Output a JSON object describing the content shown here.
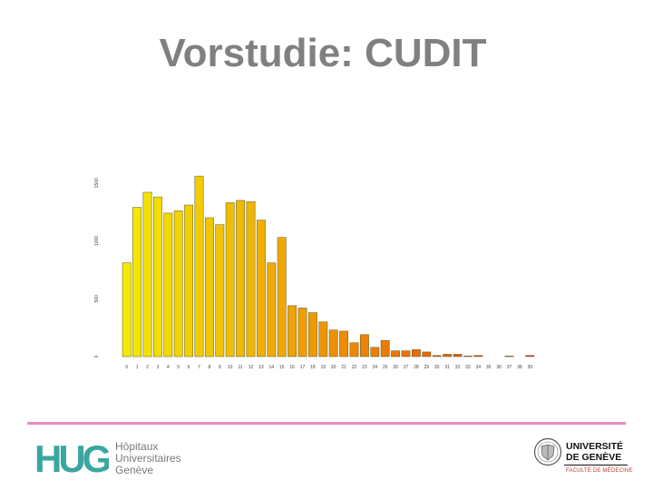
{
  "slide": {
    "title": "Vorstudie: CUDIT"
  },
  "chart_data": {
    "type": "bar",
    "title": "",
    "xlabel": "",
    "ylabel": "",
    "categories": [
      "0",
      "1",
      "2",
      "3",
      "4",
      "5",
      "6",
      "7",
      "8",
      "9",
      "10",
      "11",
      "12",
      "13",
      "14",
      "15",
      "16",
      "17",
      "18",
      "19",
      "20",
      "21",
      "22",
      "23",
      "24",
      "25",
      "26",
      "27",
      "28",
      "29",
      "30",
      "31",
      "32",
      "33",
      "34",
      "35",
      "36",
      "37",
      "38",
      "39"
    ],
    "values": [
      810,
      1290,
      1420,
      1380,
      1240,
      1260,
      1310,
      1560,
      1200,
      1140,
      1330,
      1350,
      1340,
      1180,
      810,
      1030,
      440,
      420,
      380,
      300,
      230,
      220,
      120,
      190,
      80,
      140,
      50,
      50,
      60,
      40,
      10,
      20,
      20,
      5,
      10,
      0,
      0,
      5,
      0,
      10
    ],
    "y_ticks": [
      "0",
      "500",
      "1000",
      "1500"
    ],
    "ylim": [
      0,
      2000
    ],
    "grid": false,
    "legend": "none",
    "color_start": "#f5ea00",
    "color_end": "#e63b0c"
  },
  "footer": {
    "hug_mark": "HUG",
    "hug_lines": [
      "Hôpitaux",
      "Universitaires",
      "Genève"
    ],
    "unige_lines": [
      "UNIVERSITÉ",
      "DE GENÈVE"
    ],
    "unige_faculty": "FACULTÉ DE MÉDECINE"
  }
}
